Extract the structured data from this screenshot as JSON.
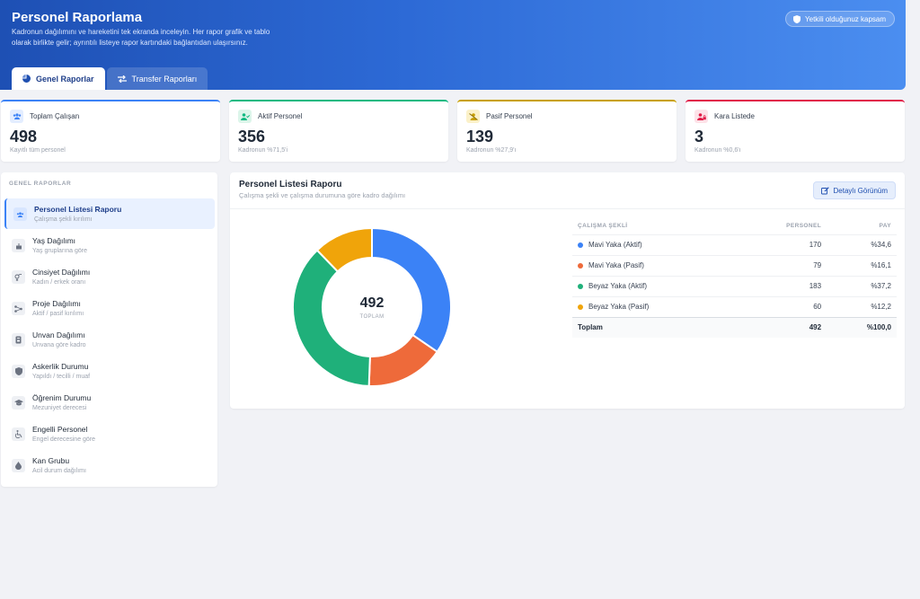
{
  "header": {
    "title": "Personel Raporlama",
    "description": "Kadronun dağılımını ve hareketini tek ekranda inceleyin. Her rapor grafik ve tablo olarak birlikte gelir; ayrıntılı listeye rapor kartındaki bağlantıdan ulaşırsınız.",
    "scope_button": "Yetkili olduğunuz kapsam",
    "tabs": [
      {
        "label": "Genel Raporlar",
        "active": true
      },
      {
        "label": "Transfer Raporları",
        "active": false
      }
    ]
  },
  "stats": [
    {
      "label": "Toplam Çalışan",
      "value": "498",
      "sub": "Kayıtlı tüm personel",
      "color": "#3b82f6",
      "icon": "users-icon"
    },
    {
      "label": "Aktif Personel",
      "value": "356",
      "sub": "Kadronun %71,5'i",
      "color": "#10b981",
      "icon": "user-check-icon"
    },
    {
      "label": "Pasif Personel",
      "value": "139",
      "sub": "Kadronun %27,9'ı",
      "color": "#c8a000",
      "icon": "user-slash-icon"
    },
    {
      "label": "Kara Listede",
      "value": "3",
      "sub": "Kadronun %0,6'ı",
      "color": "#e11d48",
      "icon": "user-lock-icon"
    }
  ],
  "sidebar": {
    "section": "GENEL RAPORLAR",
    "items": [
      {
        "label": "Personel Listesi Raporu",
        "sub": "Çalışma şekli kırılımı",
        "icon": "users-icon"
      },
      {
        "label": "Yaş Dağılımı",
        "sub": "Yaş gruplarına göre",
        "icon": "cake-icon"
      },
      {
        "label": "Cinsiyet Dağılımı",
        "sub": "Kadın / erkek oranı",
        "icon": "gender-icon"
      },
      {
        "label": "Proje Dağılımı",
        "sub": "Aktif / pasif kırılımı",
        "icon": "project-icon"
      },
      {
        "label": "Unvan Dağılımı",
        "sub": "Unvana göre kadro",
        "icon": "id-badge-icon"
      },
      {
        "label": "Askerlik Durumu",
        "sub": "Yapıldı / tecilli / muaf",
        "icon": "shield-icon"
      },
      {
        "label": "Öğrenim Durumu",
        "sub": "Mezuniyet derecesi",
        "icon": "graduation-cap-icon"
      },
      {
        "label": "Engelli Personel",
        "sub": "Engel derecesine göre",
        "icon": "wheelchair-icon"
      },
      {
        "label": "Kan Grubu",
        "sub": "Acil durum dağılımı",
        "icon": "drop-icon"
      }
    ]
  },
  "report": {
    "title": "Personel Listesi Raporu",
    "subtitle": "Çalışma şekli ve çalışma durumuna göre kadro dağılımı",
    "detail_button": "Detaylı Görünüm",
    "donut_center_value": "492",
    "donut_center_label": "TOPLAM"
  },
  "table": {
    "headers": [
      "ÇALIŞMA ŞEKLİ",
      "PERSONEL",
      "PAY"
    ],
    "rows": [
      {
        "label": "Mavi Yaka (Aktif)",
        "count": "170",
        "share": "%34,6",
        "color": "#3b82f6"
      },
      {
        "label": "Mavi Yaka (Pasif)",
        "count": "79",
        "share": "%16,1",
        "color": "#ee6a3a"
      },
      {
        "label": "Beyaz Yaka (Aktif)",
        "count": "183",
        "share": "%37,2",
        "color": "#1fb07a"
      },
      {
        "label": "Beyaz Yaka (Pasif)",
        "count": "60",
        "share": "%12,2",
        "color": "#f0a40a"
      }
    ],
    "total": {
      "label": "Toplam",
      "count": "492",
      "share": "%100,0"
    }
  },
  "chart_data": {
    "type": "pie",
    "categories": [
      "Mavi Yaka (Aktif)",
      "Mavi Yaka (Pasif)",
      "Beyaz Yaka (Aktif)",
      "Beyaz Yaka (Pasif)"
    ],
    "values": [
      170,
      79,
      183,
      60
    ],
    "colors": [
      "#3b82f6",
      "#ee6a3a",
      "#1fb07a",
      "#f0a40a"
    ],
    "donut": true
  }
}
